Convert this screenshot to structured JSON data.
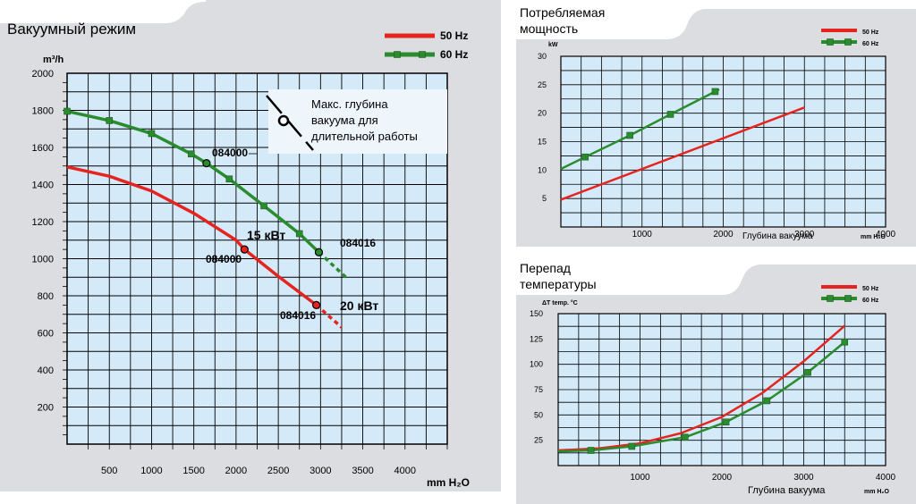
{
  "colors": {
    "panel_bg": "#dcdde0",
    "plot_bg": "#d4eaf8",
    "grid": "#000000",
    "line_50hz": "#e52420",
    "line_60hz": "#2a8c2e",
    "note_bg": "#eef6fc"
  },
  "main_chart": {
    "title": "Вакуумный режим",
    "ylabel": "m³/h",
    "xlabel": "mm H₂O",
    "xlim": [
      0,
      4500
    ],
    "ylim": [
      0,
      2000
    ],
    "y_ticks": [
      200,
      400,
      600,
      800,
      1000,
      1200,
      1400,
      1600,
      1800,
      2000
    ],
    "x_ticks": [
      500,
      1000,
      1500,
      2000,
      2500,
      3000,
      3500,
      4000
    ],
    "legend": [
      "50 Hz",
      "60 Hz"
    ],
    "note": [
      "Макс. глубина",
      "вакуума для",
      "длительной работы"
    ],
    "annotations": {
      "g_model_a": "084000",
      "g_model_b": "084016",
      "r_model_a": "084000",
      "r_model_b": "084016",
      "r_power_a": "15 кВт",
      "r_power_b": "20 кВт"
    }
  },
  "chart_data": [
    {
      "type": "line",
      "title": "Вакуумный режим",
      "xlabel": "mm H₂O",
      "ylabel": "m³/h",
      "xlim": [
        0,
        4500
      ],
      "ylim": [
        0,
        2000
      ],
      "series": [
        {
          "name": "50 Hz",
          "x": [
            0,
            500,
            1000,
            1500,
            2000,
            2100,
            2500,
            2950
          ],
          "y": [
            1495,
            1445,
            1365,
            1245,
            1100,
            1050,
            905,
            750
          ]
        },
        {
          "name": "50 Hz dashed",
          "x": [
            2950,
            3250
          ],
          "y": [
            750,
            630
          ]
        },
        {
          "name": "60 Hz",
          "x": [
            0,
            500,
            1000,
            1470,
            1650,
            1920,
            2330,
            2750,
            2980
          ],
          "y": [
            1795,
            1745,
            1675,
            1565,
            1515,
            1430,
            1285,
            1135,
            1035
          ]
        },
        {
          "name": "60 Hz dashed",
          "x": [
            2980,
            3300
          ],
          "y": [
            1035,
            900
          ]
        }
      ]
    },
    {
      "type": "line",
      "title": "Потребляемая мощность",
      "ylabel": "kW",
      "xlabel": "Глубина вакуума",
      "x_unit": "mm H₂O",
      "xlim": [
        0,
        4000
      ],
      "ylim": [
        0,
        30
      ],
      "x_ticks": [
        1000,
        2000,
        3000,
        4000
      ],
      "y_ticks": [
        5,
        10,
        15,
        20,
        25,
        30
      ],
      "legend": [
        "50 Hz",
        "60 Hz"
      ],
      "series": [
        {
          "name": "50 Hz",
          "x": [
            0,
            3000
          ],
          "y": [
            4.8,
            21
          ]
        },
        {
          "name": "60 Hz",
          "x": [
            0,
            300,
            850,
            1350,
            1900,
            1950
          ],
          "y": [
            10.2,
            12.3,
            16.1,
            19.8,
            23.8,
            24.2
          ]
        }
      ]
    },
    {
      "type": "line",
      "title": "Перепад температуры",
      "ylabel": "ΔT  temp. °C",
      "xlabel": "Глубина вакуума",
      "x_unit": "mm H₂O",
      "xlim": [
        0,
        4000
      ],
      "ylim": [
        0,
        150
      ],
      "x_ticks": [
        1000,
        2000,
        3000,
        4000
      ],
      "y_ticks": [
        25,
        50,
        75,
        100,
        125,
        150
      ],
      "legend": [
        "50 Hz",
        "60 Hz"
      ],
      "series": [
        {
          "name": "50 Hz",
          "x": [
            0,
            500,
            1000,
            1500,
            2000,
            2500,
            3000,
            3500
          ],
          "y": [
            15,
            17,
            22,
            32,
            48,
            72,
            103,
            138
          ]
        },
        {
          "name": "60 Hz",
          "x": [
            0,
            400,
            900,
            1550,
            2050,
            2550,
            3050,
            3500
          ],
          "y": [
            14,
            15,
            19,
            28,
            43,
            64,
            92,
            122
          ]
        }
      ]
    }
  ],
  "power_chart": {
    "title": [
      "Потребляемая",
      "мощность"
    ],
    "ylabel": "kW",
    "xlabel": "Глубина вакуума",
    "x_unit": "mm H₂O",
    "legend": [
      "50 Hz",
      "60 Hz"
    ]
  },
  "temp_chart": {
    "title": [
      "Перепад",
      "температуры"
    ],
    "ylabel": "ΔT  temp. °C",
    "xlabel": "Глубина вакуума",
    "x_unit": "mm H₂O",
    "legend": [
      "50 Hz",
      "60 Hz"
    ]
  }
}
